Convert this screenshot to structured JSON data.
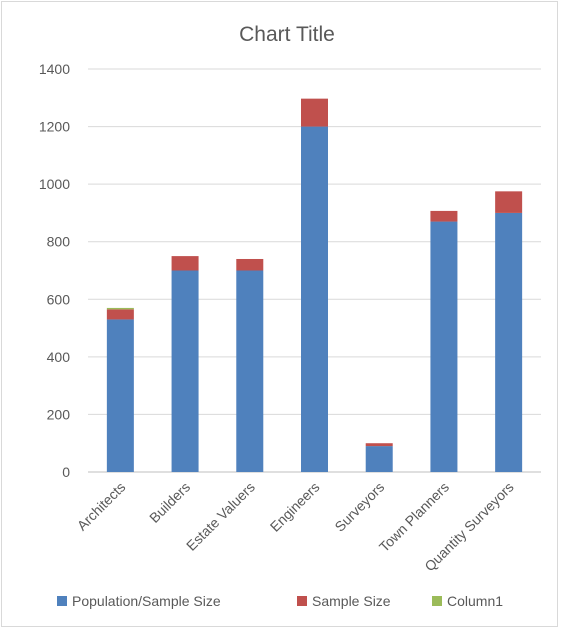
{
  "chart_data": {
    "type": "bar",
    "stacked": true,
    "title": "Chart Title",
    "categories": [
      "Architects",
      "Builders",
      "Estate Valuers",
      "Engineers",
      "Surveyors",
      "Town Planners",
      "Quantity Surveyors"
    ],
    "series": [
      {
        "name": "Population/Sample Size",
        "color": "#4f81bd",
        "values": [
          530,
          700,
          700,
          1200,
          90,
          870,
          900
        ]
      },
      {
        "name": "Sample Size",
        "color": "#c0504d",
        "values": [
          35,
          50,
          40,
          97,
          10,
          37,
          75
        ]
      },
      {
        "name": "Column1",
        "color": "#9bbb59",
        "values": [
          5,
          0,
          0,
          0,
          0,
          0,
          0
        ]
      }
    ],
    "ylim": [
      0,
      1400
    ],
    "yticks": [
      0,
      200,
      400,
      600,
      800,
      1000,
      1200,
      1400
    ],
    "grid": true,
    "legend": "bottom"
  }
}
